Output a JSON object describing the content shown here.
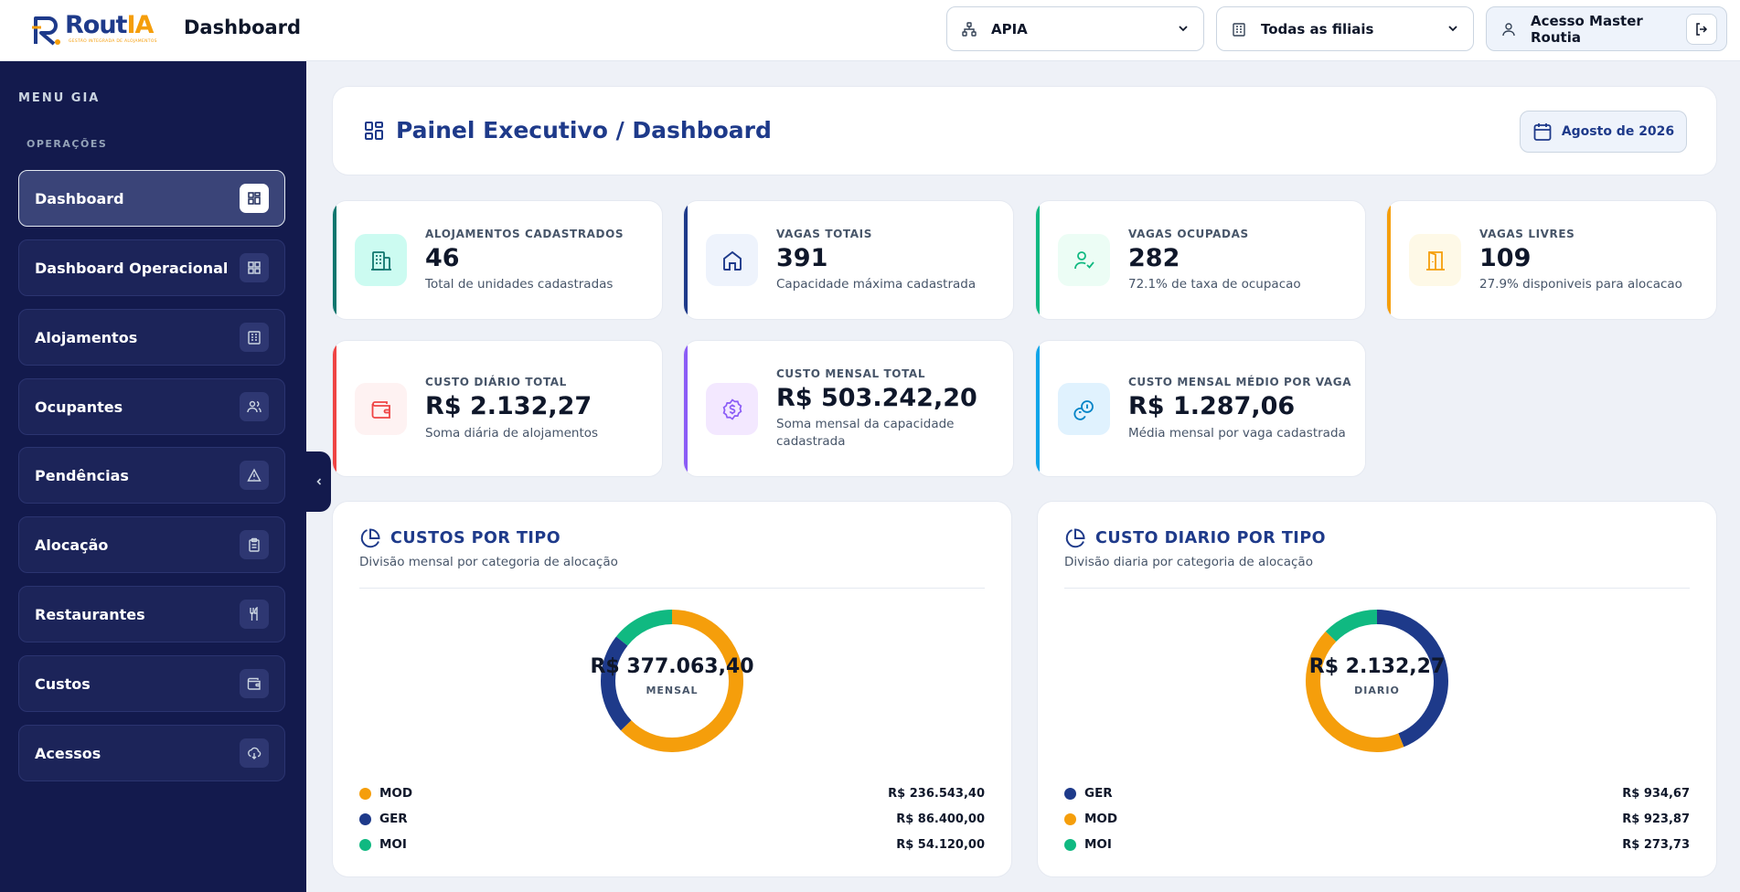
{
  "brand": {
    "name_primary": "Rout",
    "name_accent": "IA",
    "tagline": "GESTÃO INTEGRADA DE ALOJAMENTOS"
  },
  "header": {
    "page_title": "Dashboard",
    "company_selector": {
      "value": "APIA",
      "icon": "org-chart-icon"
    },
    "branch_selector": {
      "value": "Todas as filiais",
      "icon": "building-icon"
    },
    "user": {
      "label": "Acesso Master Routia",
      "icon": "user-icon"
    }
  },
  "sidebar": {
    "menu_title": "MENU GIA",
    "section_label": "OPERAÇÕES",
    "items": [
      {
        "label": "Dashboard",
        "icon": "dashboard-grid-icon",
        "active": true
      },
      {
        "label": "Dashboard Operacional",
        "icon": "dashboard-grid-icon",
        "active": false
      },
      {
        "label": "Alojamentos",
        "icon": "building-icon",
        "active": false
      },
      {
        "label": "Ocupantes",
        "icon": "users-icon",
        "active": false
      },
      {
        "label": "Pendências",
        "icon": "warning-triangle-icon",
        "active": false
      },
      {
        "label": "Alocação",
        "icon": "clipboard-icon",
        "active": false
      },
      {
        "label": "Restaurantes",
        "icon": "utensils-icon",
        "active": false
      },
      {
        "label": "Custos",
        "icon": "wallet-icon",
        "active": false
      },
      {
        "label": "Acessos",
        "icon": "cloud-download-icon",
        "active": false
      }
    ]
  },
  "panel": {
    "title": "Painel Executivo / Dashboard",
    "month_label": "Agosto de 2026"
  },
  "kpis": [
    {
      "label": "ALOJAMENTOS CADASTRADOS",
      "value": "46",
      "sub": "Total de unidades cadastradas",
      "icon": "building-icon",
      "accent": "#0f766e",
      "icon_bg": "#ccfbf1"
    },
    {
      "label": "VAGAS TOTAIS",
      "value": "391",
      "sub": "Capacidade máxima cadastrada",
      "icon": "home-icon",
      "accent": "#1e3a8a",
      "icon_bg": "#eef3fc"
    },
    {
      "label": "VAGAS OCUPADAS",
      "value": "282",
      "sub": "72.1% de taxa de ocupacao",
      "icon": "user-check-icon",
      "accent": "#10b981",
      "icon_bg": "#ecfdf5"
    },
    {
      "label": "VAGAS LIVRES",
      "value": "109",
      "sub": "27.9% disponiveis para alocacao",
      "icon": "door-open-icon",
      "accent": "#f59e0b",
      "icon_bg": "#fef9e7"
    },
    {
      "label": "CUSTO DIÁRIO TOTAL",
      "value": "R$ 2.132,27",
      "sub": "Soma diária de alojamentos",
      "icon": "wallet-icon",
      "accent": "#ef4444",
      "icon_bg": "#fef2f2"
    },
    {
      "label": "CUSTO MENSAL TOTAL",
      "value": "R$ 503.242,20",
      "sub": "Soma mensal da capacidade cadastrada",
      "icon": "dollar-badge-icon",
      "accent": "#8b5cf6",
      "icon_bg": "#f3e8ff"
    },
    {
      "label": "CUSTO MENSAL MÉDIO POR VAGA",
      "value": "R$ 1.287,06",
      "sub": "Média mensal por vaga cadastrada",
      "icon": "coins-icon",
      "accent": "#0ea5e9",
      "icon_bg": "#e0f2fe"
    }
  ],
  "cards": [
    {
      "title": "CUSTOS POR TIPO",
      "subtitle": "Divisão mensal por categoria de alocação",
      "center_value": "R$ 377.063,40",
      "center_caption": "MENSAL",
      "legend": [
        {
          "name": "MOD",
          "value": "R$ 236.543,40",
          "color": "#f59e0b"
        },
        {
          "name": "GER",
          "value": "R$ 86.400,00",
          "color": "#1e3a8a"
        },
        {
          "name": "MOI",
          "value": "R$ 54.120,00",
          "color": "#10b981"
        }
      ]
    },
    {
      "title": "CUSTO DIARIO POR TIPO",
      "subtitle": "Divisão diaria por categoria de alocação",
      "center_value": "R$ 2.132,27",
      "center_caption": "DIARIO",
      "legend": [
        {
          "name": "GER",
          "value": "R$ 934,67",
          "color": "#1e3a8a"
        },
        {
          "name": "MOD",
          "value": "R$ 923,87",
          "color": "#f59e0b"
        },
        {
          "name": "MOI",
          "value": "R$ 273,73",
          "color": "#10b981"
        }
      ]
    }
  ],
  "chart_data": [
    {
      "type": "pie",
      "title": "CUSTOS POR TIPO",
      "categories": [
        "MOD",
        "GER",
        "MOI"
      ],
      "values": [
        236543.4,
        86400.0,
        54120.0
      ],
      "colors": [
        "#f59e0b",
        "#1e3a8a",
        "#10b981"
      ]
    },
    {
      "type": "pie",
      "title": "CUSTO DIARIO POR TIPO",
      "categories": [
        "GER",
        "MOD",
        "MOI"
      ],
      "values": [
        934.67,
        923.87,
        273.73
      ],
      "colors": [
        "#1e3a8a",
        "#f59e0b",
        "#10b981"
      ]
    }
  ]
}
